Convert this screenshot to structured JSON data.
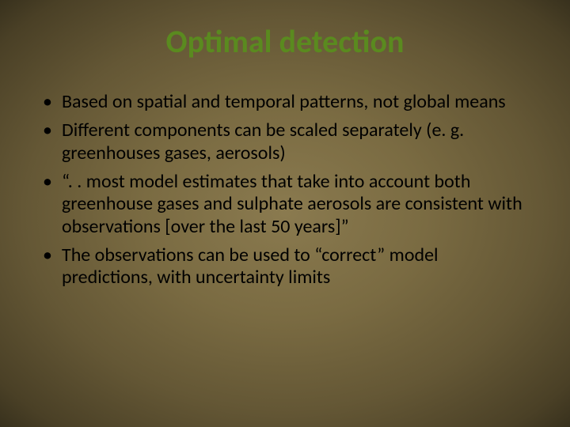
{
  "slide": {
    "title": "Optimal detection",
    "title_color": "#5a8a1f",
    "title_fontsize": 40,
    "body_color": "#000000",
    "body_fontsize": 24,
    "background_gradient_center": "#8a7a4f",
    "background_gradient_edge": "#38311d",
    "bullets": [
      "Based on spatial and temporal patterns, not global means",
      "Different components can be scaled separately (e. g. greenhouses gases, aerosols)",
      "“. . most model estimates that take into account both greenhouse gases and sulphate aerosols are consistent with observations [over the last 50 years]”",
      "The observations can be used to “correct” model predictions, with uncertainty limits"
    ]
  }
}
